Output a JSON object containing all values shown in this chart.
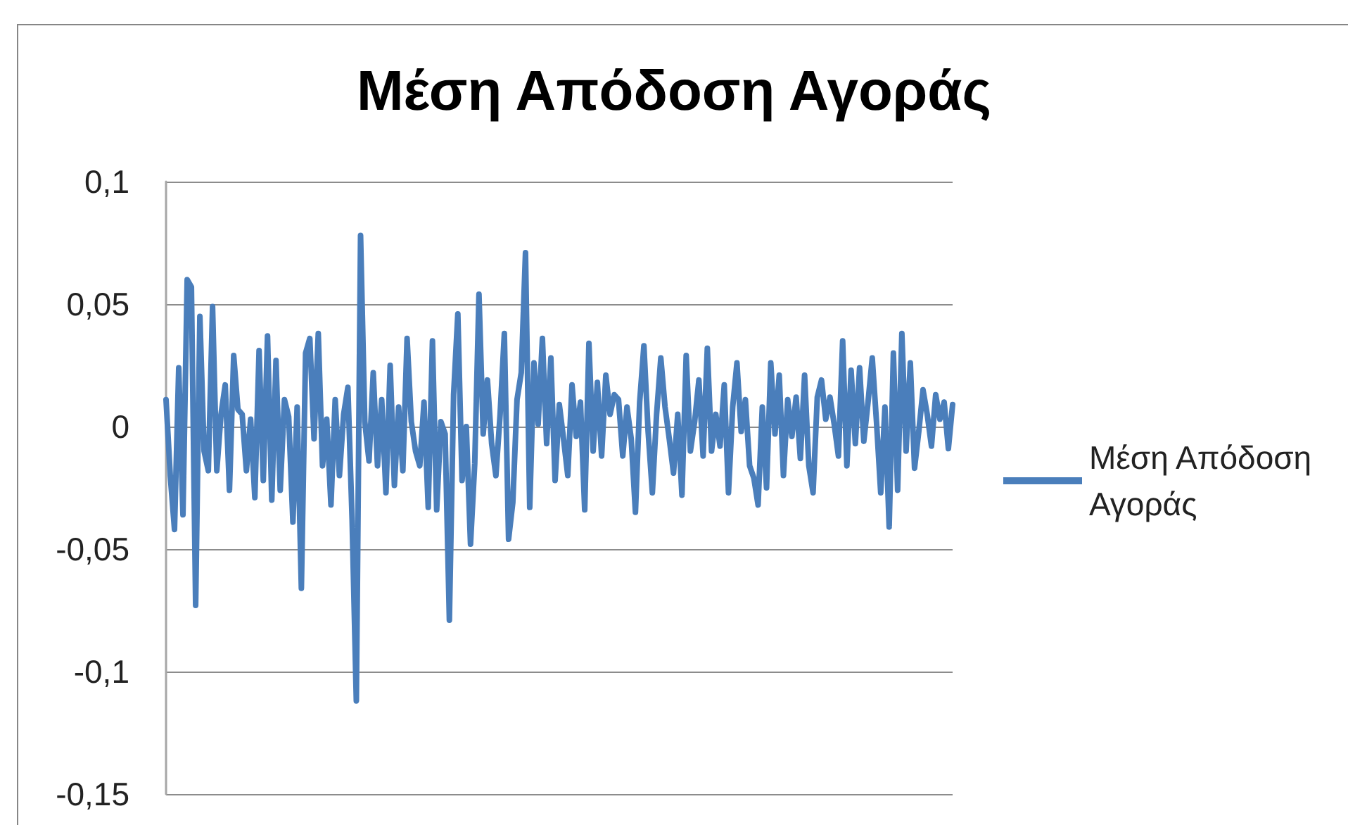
{
  "chart_data": {
    "type": "line",
    "title": "Μέση Απόδοση Αγοράς",
    "categories": [
      null,
      null,
      null,
      null,
      null,
      null,
      null,
      null,
      null,
      null,
      null,
      null,
      null,
      null,
      null,
      null,
      null,
      null,
      null,
      null,
      null,
      null,
      null,
      null,
      null,
      null,
      null,
      null,
      null,
      null,
      null,
      null,
      null,
      null,
      null,
      null,
      null,
      null,
      null,
      null,
      null,
      null,
      null,
      null,
      null,
      null,
      null,
      null,
      null,
      null,
      null,
      null,
      null,
      null,
      null,
      null,
      null,
      null,
      null,
      null,
      null,
      null,
      null,
      null,
      null,
      null,
      null,
      null,
      null,
      null,
      null,
      null,
      null,
      null,
      null,
      null,
      null,
      null,
      null,
      null,
      null,
      null,
      null,
      null,
      null,
      null,
      null,
      null,
      null,
      null,
      null,
      null,
      null,
      null,
      null,
      null,
      null,
      null,
      null,
      null,
      null,
      null,
      null,
      null,
      null,
      null,
      null,
      null,
      null,
      null,
      null,
      null,
      null,
      null,
      null,
      null,
      null,
      null,
      null,
      null,
      null,
      null,
      null,
      null,
      null,
      null,
      null,
      null,
      null,
      null,
      null,
      null,
      null,
      null,
      null,
      null,
      null,
      null,
      null,
      null,
      null,
      null,
      null,
      null,
      null,
      null,
      null,
      null,
      null,
      null,
      null,
      null,
      null,
      null,
      null,
      null,
      null,
      null,
      null,
      null,
      null,
      null,
      null,
      null,
      null,
      null,
      null,
      null,
      null,
      null,
      null,
      null,
      null,
      null,
      null,
      null,
      null,
      null,
      null,
      null,
      null,
      null,
      null,
      null,
      null,
      null,
      null
    ],
    "series": [
      {
        "name": "Μέση Απόδοση Αγοράς",
        "color": "#4a7ebb",
        "values": [
          0.011,
          -0.02,
          -0.042,
          0.024,
          -0.036,
          0.06,
          0.057,
          -0.073,
          0.045,
          -0.01,
          -0.018,
          0.049,
          -0.018,
          0.005,
          0.017,
          -0.026,
          0.029,
          0.007,
          0.005,
          -0.018,
          0.003,
          -0.029,
          0.031,
          -0.022,
          0.037,
          -0.03,
          0.027,
          -0.026,
          0.011,
          0.004,
          -0.039,
          0.008,
          -0.066,
          0.03,
          0.036,
          -0.005,
          0.038,
          -0.016,
          0.003,
          -0.032,
          0.011,
          -0.02,
          0.005,
          0.016,
          -0.038,
          -0.112,
          0.078,
          0.002,
          -0.014,
          0.022,
          -0.016,
          0.011,
          -0.027,
          0.025,
          -0.024,
          0.008,
          -0.018,
          0.036,
          0.002,
          -0.01,
          -0.016,
          0.01,
          -0.033,
          0.035,
          -0.034,
          0.002,
          -0.003,
          -0.079,
          0.013,
          0.046,
          -0.022,
          0,
          -0.048,
          -0.015,
          0.054,
          -0.003,
          0.019,
          -0.007,
          -0.02,
          0.005,
          0.038,
          -0.046,
          -0.031,
          0.011,
          0.022,
          0.071,
          -0.033,
          0.026,
          0.001,
          0.036,
          -0.007,
          0.028,
          -0.022,
          0.009,
          -0.005,
          -0.02,
          0.017,
          -0.004,
          0.01,
          -0.034,
          0.034,
          -0.01,
          0.018,
          -0.012,
          0.021,
          0.005,
          0.013,
          0.011,
          -0.012,
          0.008,
          -0.005,
          -0.035,
          0.01,
          0.033,
          -0.002,
          -0.027,
          0.005,
          0.028,
          0.008,
          -0.005,
          -0.019,
          0.005,
          -0.028,
          0.029,
          -0.01,
          0.002,
          0.019,
          -0.012,
          0.032,
          -0.01,
          0.005,
          -0.008,
          0.017,
          -0.027,
          0.008,
          0.026,
          -0.002,
          0.011,
          -0.016,
          -0.021,
          -0.032,
          0.008,
          -0.025,
          0.026,
          -0.003,
          0.021,
          -0.02,
          0.011,
          -0.004,
          0.012,
          -0.013,
          0.021,
          -0.016,
          -0.027,
          0.012,
          0.019,
          0.003,
          0.012,
          0.001,
          -0.012,
          0.035,
          -0.016,
          0.023,
          -0.007,
          0.024,
          -0.006,
          0.01,
          0.028,
          0.002,
          -0.027,
          0.008,
          -0.041,
          0.03,
          -0.026,
          0.038,
          -0.01,
          0.026,
          -0.017,
          -0.002,
          0.015,
          0.005,
          -0.008,
          0.013,
          0.003,
          0.01,
          -0.009,
          0.009
        ]
      }
    ],
    "ylim": [
      -0.15,
      0.1
    ],
    "yticks": [
      {
        "value": -0.15,
        "label": "-0,15"
      },
      {
        "value": -0.1,
        "label": "-0,1"
      },
      {
        "value": -0.05,
        "label": "-0,05"
      },
      0,
      {
        "value": 0.05,
        "label": "0,05"
      },
      {
        "value": 0.1,
        "label": "0,1"
      }
    ],
    "grid": "y",
    "legend": "right",
    "tick_labels": "y",
    "marker": "none",
    "line_style": "solid"
  }
}
